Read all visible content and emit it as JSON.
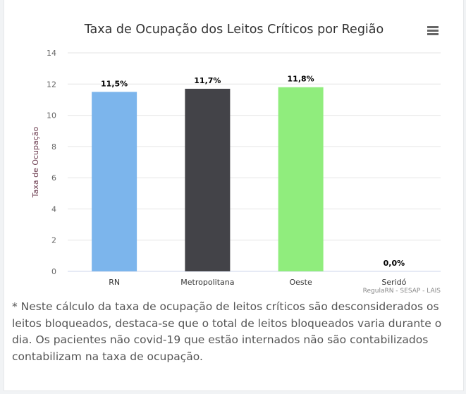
{
  "chart_data": {
    "type": "bar",
    "title": "Taxa de Ocupação dos Leitos Críticos por Região",
    "xlabel": "",
    "ylabel": "Taxa de Ocupação",
    "ylim": [
      0,
      14
    ],
    "yticks": [
      0,
      2,
      4,
      6,
      8,
      10,
      12,
      14
    ],
    "grid": true,
    "categories": [
      "RN",
      "Metropolitana",
      "Oeste",
      "Seridó"
    ],
    "values": [
      11.5,
      11.7,
      11.8,
      0.0
    ],
    "data_labels": [
      "11,5%",
      "11,7%",
      "11,8%",
      "0,0%"
    ],
    "colors": [
      "#7cb5ec",
      "#434348",
      "#90ed7d",
      "#f7a35c"
    ],
    "credits": "RegulaRN - SESAP - LAIS"
  },
  "menu_icon": "hamburger-menu-icon",
  "note": "* Neste cálculo da taxa de ocupação de leitos críticos são desconsiderados os leitos bloqueados, destaca-se que o total de leitos bloqueados varia durante o dia. Os pacientes não covid-19 que estão internados não são contabilizados contabilizam na taxa de ocupação."
}
